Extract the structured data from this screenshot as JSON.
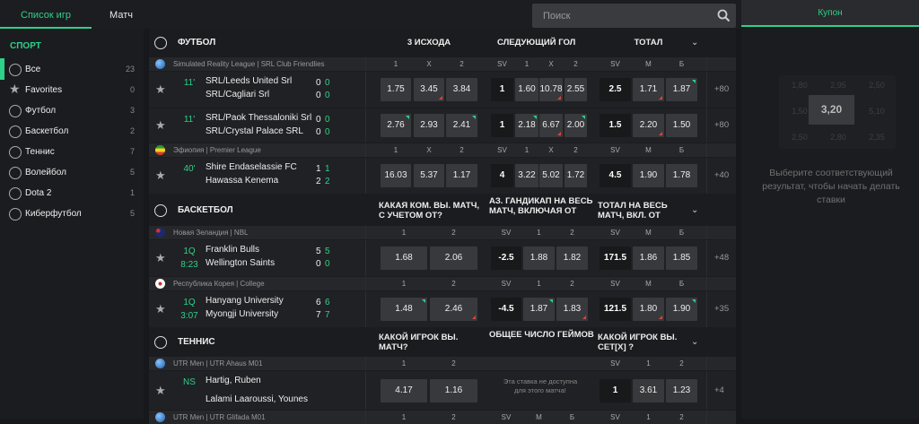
{
  "top_tabs": [
    {
      "label": "Список игр",
      "active": true
    },
    {
      "label": "Матч",
      "active": false
    }
  ],
  "search": {
    "placeholder": "Поиск",
    "icon": "search-icon"
  },
  "sidebar": {
    "title": "СПОРТ",
    "items": [
      {
        "label": "Все",
        "count": "23",
        "icon": "star-circle-icon",
        "active": true
      },
      {
        "label": "Favorites",
        "count": "0",
        "icon": "star-icon"
      },
      {
        "label": "Футбол",
        "count": "3",
        "icon": "soccer-ball-icon"
      },
      {
        "label": "Баскетбол",
        "count": "2",
        "icon": "basketball-icon"
      },
      {
        "label": "Теннис",
        "count": "7",
        "icon": "tennis-ball-icon"
      },
      {
        "label": "Волейбол",
        "count": "5",
        "icon": "volleyball-icon"
      },
      {
        "label": "Dota 2",
        "count": "1",
        "icon": "dota-icon"
      },
      {
        "label": "Киберфутбол",
        "count": "5",
        "icon": "cyber-football-icon"
      }
    ]
  },
  "colors": {
    "accent": "#2ed08a",
    "down": "#e0443c",
    "cell": "#38393c",
    "bg": "#1b1c1f"
  },
  "sections": [
    {
      "name": "ФУТБОЛ",
      "icon": "soccer-ball-icon",
      "headers": [
        "3 ИСХОДА",
        "СЛЕДУЮЩИЙ ГОЛ",
        "ТОТАЛ"
      ],
      "leagues": [
        {
          "name": "Simulated Reality League | SRL Club Friendlies",
          "flag": "globe",
          "cols": [
            "1",
            "X",
            "2",
            "SV",
            "1",
            "X",
            "2",
            "SV",
            "М",
            "Б"
          ],
          "matches": [
            {
              "time": [
                "11'"
              ],
              "teams": [
                "SRL/Leeds United Srl",
                "SRL/Cagliari Srl"
              ],
              "scores": [
                [
                  "0",
                  "0"
                ],
                [
                  "0",
                  "0"
                ]
              ],
              "odds": [
                {
                  "v": "1.75"
                },
                {
                  "v": "3.45",
                  "t": "down"
                },
                {
                  "v": "3.84"
                },
                {
                  "v": "1"
                },
                {
                  "v": "1.60"
                },
                {
                  "v": "10.78",
                  "t": "down"
                },
                {
                  "v": "2.55"
                },
                {
                  "v": "2.5"
                },
                {
                  "v": "1.71",
                  "t": "down"
                },
                {
                  "v": "1.87",
                  "t": "up"
                }
              ],
              "more": "+80"
            },
            {
              "time": [
                "11'"
              ],
              "teams": [
                "SRL/Paok Thessaloniki Srl",
                "SRL/Crystal Palace SRL"
              ],
              "scores": [
                [
                  "0",
                  "0"
                ],
                [
                  "0",
                  "0"
                ]
              ],
              "odds": [
                {
                  "v": "2.76",
                  "t": "up"
                },
                {
                  "v": "2.93"
                },
                {
                  "v": "2.41",
                  "t": "up"
                },
                {
                  "v": "1"
                },
                {
                  "v": "2.18",
                  "t": "up"
                },
                {
                  "v": "6.67",
                  "t": "down"
                },
                {
                  "v": "2.00",
                  "t": "up"
                },
                {
                  "v": "1.5"
                },
                {
                  "v": "2.20",
                  "t": "down"
                },
                {
                  "v": "1.50"
                }
              ],
              "more": "+80"
            }
          ]
        },
        {
          "name": "Эфиопия | Premier League",
          "flag": "ethiopia",
          "cols": [
            "1",
            "X",
            "2",
            "SV",
            "1",
            "X",
            "2",
            "SV",
            "М",
            "Б"
          ],
          "matches": [
            {
              "time": [
                "40'"
              ],
              "teams": [
                "Shire Endaselassie FC",
                "Hawassa Kenema"
              ],
              "scores": [
                [
                  "1",
                  "1"
                ],
                [
                  "2",
                  "2"
                ]
              ],
              "odds": [
                {
                  "v": "16.03"
                },
                {
                  "v": "5.37"
                },
                {
                  "v": "1.17"
                },
                {
                  "v": "4"
                },
                {
                  "v": "3.22"
                },
                {
                  "v": "5.02"
                },
                {
                  "v": "1.72"
                },
                {
                  "v": "4.5"
                },
                {
                  "v": "1.90"
                },
                {
                  "v": "1.78"
                }
              ],
              "more": "+40"
            }
          ]
        }
      ]
    },
    {
      "name": "БАСКЕТБОЛ",
      "icon": "basketball-icon",
      "headers": [
        "КАКАЯ КОМ. ВЫ. МАТЧ, С УЧЕТОМ ОТ?",
        "АЗ. ГАНДИКАП НА ВЕСЬ МАТЧ, ВКЛЮЧАЯ ОТ",
        "ТОТАЛ НА ВЕСЬ МАТЧ, ВКЛ. ОТ"
      ],
      "leagues": [
        {
          "name": "Новая Зеландия | NBL",
          "flag": "new-zealand",
          "cols": [
            "1",
            "2",
            "SV",
            "1",
            "2",
            "SV",
            "М",
            "Б"
          ],
          "matches": [
            {
              "time": [
                "1Q",
                "8:23"
              ],
              "teams": [
                "Franklin Bulls",
                "Wellington Saints"
              ],
              "scores": [
                [
                  "5",
                  "5"
                ],
                [
                  "0",
                  "0"
                ]
              ],
              "odds": [
                {
                  "v": "1.68"
                },
                {
                  "v": "2.06"
                },
                {
                  "v": "-2.5"
                },
                {
                  "v": "1.88"
                },
                {
                  "v": "1.82"
                },
                {
                  "v": "171.5"
                },
                {
                  "v": "1.86"
                },
                {
                  "v": "1.85"
                }
              ],
              "more": "+48"
            }
          ]
        },
        {
          "name": "Республика Корея | College",
          "flag": "south-korea",
          "cols": [
            "1",
            "2",
            "SV",
            "1",
            "2",
            "SV",
            "М",
            "Б"
          ],
          "matches": [
            {
              "time": [
                "1Q",
                "3:07"
              ],
              "teams": [
                "Hanyang University",
                "Myongji University"
              ],
              "scores": [
                [
                  "6",
                  "6"
                ],
                [
                  "7",
                  "7"
                ]
              ],
              "odds": [
                {
                  "v": "1.48",
                  "t": "up"
                },
                {
                  "v": "2.46",
                  "t": "down"
                },
                {
                  "v": "-4.5"
                },
                {
                  "v": "1.87",
                  "t": "up"
                },
                {
                  "v": "1.83",
                  "t": "down"
                },
                {
                  "v": "121.5"
                },
                {
                  "v": "1.80",
                  "t": "down"
                },
                {
                  "v": "1.90",
                  "t": "up"
                }
              ],
              "more": "+35"
            }
          ]
        }
      ]
    },
    {
      "name": "ТЕННИС",
      "icon": "tennis-ball-icon",
      "headers": [
        "КАКОЙ ИГРОК ВЫ. МАТЧ?",
        "ОБЩЕЕ ЧИСЛО ГЕЙМОВ",
        "КАКОЙ ИГРОК ВЫ. СЕТ[X] ?"
      ],
      "leagues": [
        {
          "name": "UTR Men | UTR Ahaus M01",
          "flag": "globe",
          "cols": [
            "1",
            "2",
            "",
            "",
            "",
            "SV",
            "1",
            "2"
          ],
          "matches": [
            {
              "time": [
                "NS"
              ],
              "teams": [
                "Hartig, Ruben",
                "Lalami Laaroussi, Younes"
              ],
              "scores": [],
              "odds": [
                {
                  "v": "4.17"
                },
                {
                  "v": "1.16"
                },
                null,
                null,
                null,
                {
                  "v": "1"
                },
                {
                  "v": "3.61"
                },
                {
                  "v": "1.23"
                }
              ],
              "unavailable": "Эта ставка не доступна для этого матча!",
              "more": "+4"
            }
          ]
        },
        {
          "name": "UTR Men | UTR Glifada M01",
          "flag": "globe",
          "cols": [
            "1",
            "2",
            "SV",
            "М",
            "Б",
            "SV",
            "1",
            "2"
          ],
          "matches": []
        }
      ]
    }
  ],
  "coupon": {
    "tab": "Купон",
    "grid": [
      "1,80",
      "2,95",
      "2,50",
      "1,50",
      "3,20",
      "5,10",
      "2,50",
      "2,80",
      "2,35"
    ],
    "message": "Выберите соответствующий результат, чтобы начать делать ставки"
  }
}
